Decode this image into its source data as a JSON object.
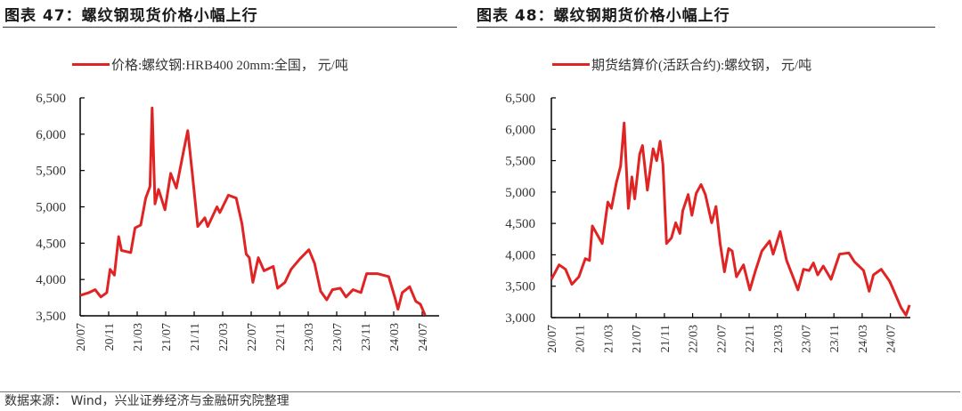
{
  "source": "数据来源： Wind，兴业证券经济与金融研究院整理",
  "colors": {
    "line": "#e02424",
    "axis": "#000000"
  },
  "chart_data": [
    {
      "type": "line",
      "title": "图表 47：螺纹钢现货价格小幅上行",
      "legend": "价格:螺纹钢:HRB400 20mm:全国， 元/吨",
      "legend_placement": "top",
      "grid": false,
      "ylim": [
        3500,
        6500
      ],
      "yticks": [
        "6,500",
        "6,000",
        "5,500",
        "5,000",
        "4,500",
        "4,000",
        "3,500"
      ],
      "ytick_values": [
        6500,
        6000,
        5500,
        5000,
        4500,
        4000,
        3500
      ],
      "xticks": [
        "20/07",
        "20/11",
        "21/03",
        "21/07",
        "21/11",
        "22/03",
        "22/07",
        "22/11",
        "23/03",
        "23/07",
        "23/11",
        "24/03",
        "24/07"
      ],
      "xlim": [
        "2020-07-01",
        "2024-09-01"
      ],
      "series": [
        {
          "name": "价格:螺纹钢:HRB400 20mm:全国， 元/吨",
          "points": [
            [
              "2020-07-01",
              3780
            ],
            [
              "2020-08-08",
              3820
            ],
            [
              "2020-09-04",
              3860
            ],
            [
              "2020-09-28",
              3760
            ],
            [
              "2020-10-23",
              3820
            ],
            [
              "2020-11-07",
              4140
            ],
            [
              "2020-11-25",
              4060
            ],
            [
              "2020-12-13",
              4590
            ],
            [
              "2020-12-25",
              4400
            ],
            [
              "2021-02-04",
              4370
            ],
            [
              "2021-02-22",
              4710
            ],
            [
              "2021-03-16",
              4750
            ],
            [
              "2021-04-07",
              5120
            ],
            [
              "2021-04-25",
              5280
            ],
            [
              "2021-05-04",
              6360
            ],
            [
              "2021-05-16",
              5040
            ],
            [
              "2021-06-01",
              5240
            ],
            [
              "2021-06-28",
              4960
            ],
            [
              "2021-07-22",
              5460
            ],
            [
              "2021-08-16",
              5260
            ],
            [
              "2021-09-19",
              5810
            ],
            [
              "2021-10-04",
              6050
            ],
            [
              "2021-10-25",
              5400
            ],
            [
              "2021-11-16",
              4730
            ],
            [
              "2021-12-16",
              4850
            ],
            [
              "2021-12-28",
              4730
            ],
            [
              "2022-02-07",
              5000
            ],
            [
              "2022-02-19",
              4920
            ],
            [
              "2022-03-25",
              5160
            ],
            [
              "2022-04-28",
              5120
            ],
            [
              "2022-05-22",
              4770
            ],
            [
              "2022-06-10",
              4350
            ],
            [
              "2022-06-23",
              4300
            ],
            [
              "2022-07-08",
              3960
            ],
            [
              "2022-08-01",
              4300
            ],
            [
              "2022-08-25",
              4120
            ],
            [
              "2022-10-04",
              4180
            ],
            [
              "2022-10-22",
              3880
            ],
            [
              "2022-11-23",
              3960
            ],
            [
              "2022-12-19",
              4140
            ],
            [
              "2023-01-25",
              4280
            ],
            [
              "2023-03-04",
              4410
            ],
            [
              "2023-03-28",
              4220
            ],
            [
              "2023-04-23",
              3840
            ],
            [
              "2023-05-19",
              3720
            ],
            [
              "2023-06-13",
              3860
            ],
            [
              "2023-07-16",
              3880
            ],
            [
              "2023-08-10",
              3760
            ],
            [
              "2023-09-10",
              3860
            ],
            [
              "2023-10-13",
              3820
            ],
            [
              "2023-11-07",
              4080
            ],
            [
              "2023-12-22",
              4080
            ],
            [
              "2024-02-10",
              4040
            ],
            [
              "2024-03-07",
              3740
            ],
            [
              "2024-03-19",
              3590
            ],
            [
              "2024-04-07",
              3820
            ],
            [
              "2024-05-08",
              3900
            ],
            [
              "2024-06-04",
              3700
            ],
            [
              "2024-06-23",
              3660
            ],
            [
              "2024-07-13",
              3510
            ]
          ]
        }
      ]
    },
    {
      "type": "line",
      "title": "图表 48：螺纹钢期货价格小幅上行",
      "legend": "期货结算价(活跃合约):螺纹钢， 元/吨",
      "legend_placement": "top",
      "grid": false,
      "ylim": [
        3000,
        6500
      ],
      "yticks": [
        "6,500",
        "6,000",
        "5,500",
        "5,000",
        "4,500",
        "4,000",
        "3,500",
        "3,000"
      ],
      "ytick_values": [
        6500,
        6000,
        5500,
        5000,
        4500,
        4000,
        3500,
        3000
      ],
      "xticks": [
        "20/07",
        "20/11",
        "21/03",
        "21/07",
        "21/11",
        "22/03",
        "22/07",
        "22/11",
        "23/03",
        "23/07",
        "23/11",
        "24/03",
        "24/07"
      ],
      "xlim": [
        "2020-07-01",
        "2024-09-01"
      ],
      "series": [
        {
          "name": "期货结算价(活跃合约):螺纹钢， 元/吨",
          "points": [
            [
              "2020-07-01",
              3610
            ],
            [
              "2020-08-04",
              3840
            ],
            [
              "2020-09-01",
              3770
            ],
            [
              "2020-09-28",
              3530
            ],
            [
              "2020-10-28",
              3650
            ],
            [
              "2020-11-25",
              3940
            ],
            [
              "2020-12-13",
              3910
            ],
            [
              "2020-12-25",
              4460
            ],
            [
              "2021-01-16",
              4320
            ],
            [
              "2021-02-07",
              4180
            ],
            [
              "2021-03-01",
              4840
            ],
            [
              "2021-03-16",
              4740
            ],
            [
              "2021-04-07",
              5150
            ],
            [
              "2021-04-25",
              5410
            ],
            [
              "2021-05-10",
              6100
            ],
            [
              "2021-05-28",
              4740
            ],
            [
              "2021-06-13",
              5240
            ],
            [
              "2021-06-25",
              4890
            ],
            [
              "2021-07-16",
              5600
            ],
            [
              "2021-07-28",
              5740
            ],
            [
              "2021-08-19",
              5030
            ],
            [
              "2021-09-13",
              5690
            ],
            [
              "2021-09-28",
              5500
            ],
            [
              "2021-10-13",
              5810
            ],
            [
              "2021-10-25",
              5430
            ],
            [
              "2021-11-10",
              4180
            ],
            [
              "2021-12-01",
              4270
            ],
            [
              "2021-12-19",
              4510
            ],
            [
              "2022-01-07",
              4340
            ],
            [
              "2022-01-19",
              4700
            ],
            [
              "2022-02-12",
              4960
            ],
            [
              "2022-02-28",
              4630
            ],
            [
              "2022-03-16",
              4980
            ],
            [
              "2022-04-07",
              5120
            ],
            [
              "2022-04-25",
              4960
            ],
            [
              "2022-05-22",
              4510
            ],
            [
              "2022-06-10",
              4770
            ],
            [
              "2022-06-28",
              4180
            ],
            [
              "2022-07-16",
              3730
            ],
            [
              "2022-08-04",
              4100
            ],
            [
              "2022-08-19",
              4060
            ],
            [
              "2022-09-07",
              3650
            ],
            [
              "2022-10-07",
              3840
            ],
            [
              "2022-11-04",
              3440
            ],
            [
              "2022-11-28",
              3750
            ],
            [
              "2022-12-25",
              4060
            ],
            [
              "2023-01-28",
              4220
            ],
            [
              "2023-02-13",
              4010
            ],
            [
              "2023-03-13",
              4370
            ],
            [
              "2023-04-10",
              3910
            ],
            [
              "2023-05-07",
              3650
            ],
            [
              "2023-05-28",
              3440
            ],
            [
              "2023-06-22",
              3770
            ],
            [
              "2023-07-16",
              3750
            ],
            [
              "2023-08-04",
              3870
            ],
            [
              "2023-08-22",
              3680
            ],
            [
              "2023-09-16",
              3820
            ],
            [
              "2023-10-19",
              3610
            ],
            [
              "2023-11-25",
              4010
            ],
            [
              "2024-01-04",
              4030
            ],
            [
              "2024-01-28",
              3890
            ],
            [
              "2024-03-07",
              3750
            ],
            [
              "2024-04-01",
              3420
            ],
            [
              "2024-04-19",
              3680
            ],
            [
              "2024-05-22",
              3770
            ],
            [
              "2024-06-28",
              3580
            ],
            [
              "2024-07-22",
              3370
            ],
            [
              "2024-08-16",
              3160
            ],
            [
              "2024-09-07",
              3040
            ],
            [
              "2024-09-22",
              3200
            ]
          ]
        }
      ]
    }
  ]
}
